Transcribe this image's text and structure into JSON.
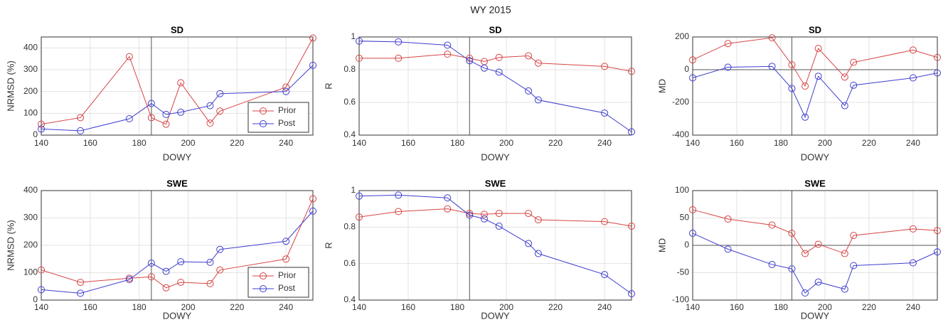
{
  "title": "WY 2015",
  "chart_data": [
    {
      "type": "line",
      "title": "SD",
      "xlabel": "DOWY",
      "ylabel": "NRMSD (%)",
      "x": [
        140,
        156,
        176,
        185,
        191,
        197,
        209,
        213,
        240,
        251
      ],
      "series": [
        {
          "name": "Prior",
          "color": "#d64545",
          "values": [
            50,
            80,
            360,
            80,
            50,
            240,
            55,
            110,
            220,
            445
          ]
        },
        {
          "name": "Post",
          "color": "#3f3fcf",
          "values": [
            28,
            20,
            75,
            145,
            95,
            105,
            135,
            190,
            200,
            320
          ]
        }
      ],
      "xlim": [
        140,
        251
      ],
      "ylim": [
        0,
        450
      ],
      "xticks": [
        140,
        160,
        180,
        200,
        220,
        240
      ],
      "yticks": [
        0,
        100,
        200,
        300,
        400
      ],
      "grid": true,
      "reference_x": 185,
      "legend": "southeast"
    },
    {
      "type": "line",
      "title": "SD",
      "xlabel": "DOWY",
      "ylabel": "R",
      "x": [
        140,
        156,
        176,
        185,
        191,
        197,
        209,
        213,
        240,
        251
      ],
      "series": [
        {
          "name": "Prior",
          "color": "#d64545",
          "values": [
            0.87,
            0.87,
            0.895,
            0.87,
            0.85,
            0.875,
            0.885,
            0.84,
            0.82,
            0.79
          ]
        },
        {
          "name": "Post",
          "color": "#3f3fcf",
          "values": [
            0.975,
            0.97,
            0.95,
            0.855,
            0.81,
            0.785,
            0.67,
            0.615,
            0.535,
            0.42
          ]
        }
      ],
      "xlim": [
        140,
        251
      ],
      "ylim": [
        0.4,
        1
      ],
      "xticks": [
        140,
        160,
        180,
        200,
        220,
        240
      ],
      "yticks": [
        0.4,
        0.6,
        0.8,
        1
      ],
      "grid": true,
      "reference_x": 185
    },
    {
      "type": "line",
      "title": "SD",
      "xlabel": "DOWY",
      "ylabel": "MD",
      "x": [
        140,
        156,
        176,
        185,
        191,
        197,
        209,
        213,
        240,
        251
      ],
      "series": [
        {
          "name": "Prior",
          "color": "#d64545",
          "values": [
            60,
            160,
            195,
            30,
            -100,
            130,
            -45,
            45,
            120,
            75
          ]
        },
        {
          "name": "Post",
          "color": "#3f3fcf",
          "values": [
            -50,
            15,
            20,
            -115,
            -290,
            -40,
            -220,
            -95,
            -50,
            -20
          ]
        }
      ],
      "xlim": [
        140,
        251
      ],
      "ylim": [
        -400,
        200
      ],
      "xticks": [
        140,
        160,
        180,
        200,
        220,
        240
      ],
      "yticks": [
        -400,
        -200,
        0,
        200
      ],
      "grid": true,
      "reference_x": 185,
      "reference_y": 0
    },
    {
      "type": "line",
      "title": "SWE",
      "xlabel": "DOWY",
      "ylabel": "NRMSD (%)",
      "x": [
        140,
        156,
        176,
        185,
        191,
        197,
        209,
        213,
        240,
        251
      ],
      "series": [
        {
          "name": "Prior",
          "color": "#d64545",
          "values": [
            110,
            65,
            80,
            85,
            45,
            65,
            60,
            110,
            150,
            370
          ]
        },
        {
          "name": "Post",
          "color": "#3f3fcf",
          "values": [
            38,
            25,
            75,
            135,
            105,
            140,
            138,
            185,
            215,
            325
          ]
        }
      ],
      "xlim": [
        140,
        251
      ],
      "ylim": [
        0,
        400
      ],
      "xticks": [
        140,
        160,
        180,
        200,
        220,
        240
      ],
      "yticks": [
        0,
        100,
        200,
        300,
        400
      ],
      "grid": true,
      "reference_x": 185,
      "legend": "southeast"
    },
    {
      "type": "line",
      "title": "SWE",
      "xlabel": "DOWY",
      "ylabel": "R",
      "x": [
        140,
        156,
        176,
        185,
        191,
        197,
        209,
        213,
        240,
        251
      ],
      "series": [
        {
          "name": "Prior",
          "color": "#d64545",
          "values": [
            0.855,
            0.885,
            0.9,
            0.875,
            0.87,
            0.875,
            0.875,
            0.84,
            0.83,
            0.805
          ]
        },
        {
          "name": "Post",
          "color": "#3f3fcf",
          "values": [
            0.97,
            0.975,
            0.96,
            0.865,
            0.845,
            0.805,
            0.71,
            0.655,
            0.54,
            0.435
          ]
        }
      ],
      "xlim": [
        140,
        251
      ],
      "ylim": [
        0.4,
        1
      ],
      "xticks": [
        140,
        160,
        180,
        200,
        220,
        240
      ],
      "yticks": [
        0.4,
        0.6,
        0.8,
        1
      ],
      "grid": true,
      "reference_x": 185
    },
    {
      "type": "line",
      "title": "SWE",
      "xlabel": "DOWY",
      "ylabel": "MD",
      "x": [
        140,
        156,
        176,
        185,
        191,
        197,
        209,
        213,
        240,
        251
      ],
      "series": [
        {
          "name": "Prior",
          "color": "#d64545",
          "values": [
            65,
            48,
            37,
            22,
            -15,
            2,
            -15,
            18,
            30,
            27
          ]
        },
        {
          "name": "Post",
          "color": "#3f3fcf",
          "values": [
            22,
            -7,
            -35,
            -43,
            -87,
            -67,
            -80,
            -37,
            -32,
            -12
          ]
        }
      ],
      "xlim": [
        140,
        251
      ],
      "ylim": [
        -100,
        100
      ],
      "xticks": [
        140,
        160,
        180,
        200,
        220,
        240
      ],
      "yticks": [
        -100,
        -50,
        0,
        50,
        100
      ],
      "grid": true,
      "reference_x": 185,
      "reference_y": 0
    }
  ]
}
